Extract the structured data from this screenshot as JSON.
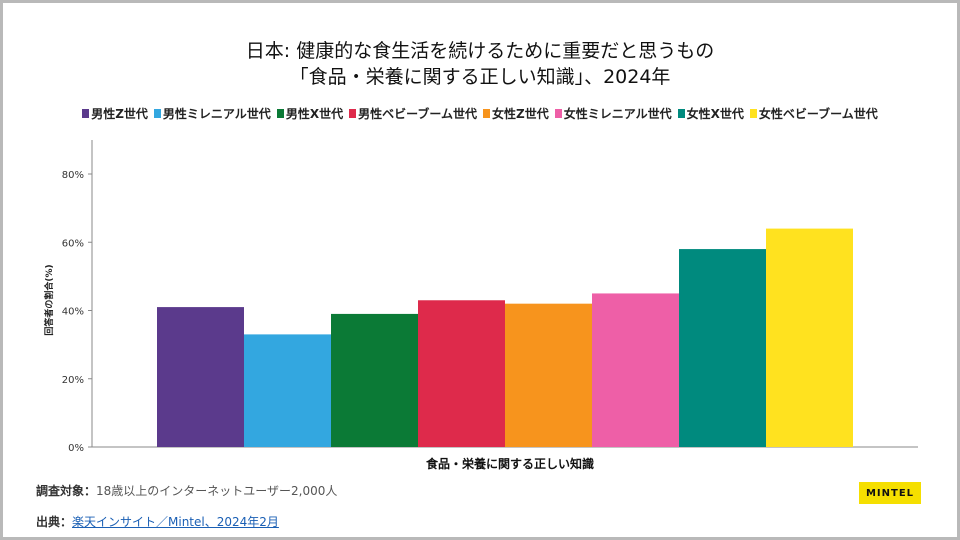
{
  "title_line1": "日本: 健康的な食生活を続けるために重要だと思うもの",
  "title_line2": "「食品・栄養に関する正しい知識」、2024年",
  "footer": {
    "sample_label": "調査対象：",
    "sample_text": "18歳以上のインターネットユーザー2,000人",
    "source_label": "出典：",
    "source_link": "楽天インサイト／Mintel、2024年2月"
  },
  "brand": "MINTEL",
  "chart_data": {
    "type": "bar",
    "categories": [
      "食品・栄養に関する正しい知識"
    ],
    "xlabel": "食品・栄養に関する正しい知識",
    "ylabel": "回答者の割合(%)",
    "ylim": [
      0,
      80
    ],
    "yticks": [
      0,
      20,
      40,
      60,
      80
    ],
    "ytick_labels": [
      "0%",
      "20%",
      "40%",
      "60%",
      "80%"
    ],
    "grid": false,
    "legend_position": "top",
    "series": [
      {
        "name": "男性Z世代",
        "values": [
          41
        ],
        "color": "#5b3a8c"
      },
      {
        "name": "男性ミレニアル世代",
        "values": [
          33
        ],
        "color": "#33a7e0"
      },
      {
        "name": "男性X世代",
        "values": [
          39
        ],
        "color": "#0b7a36"
      },
      {
        "name": "男性ベビーブーム世代",
        "values": [
          43
        ],
        "color": "#de2a4b"
      },
      {
        "name": "女性Z世代",
        "values": [
          42
        ],
        "color": "#f7941d"
      },
      {
        "name": "女性ミレニアル世代",
        "values": [
          45
        ],
        "color": "#ee5fa7"
      },
      {
        "name": "女性X世代",
        "values": [
          58
        ],
        "color": "#008a7e"
      },
      {
        "name": "女性ベビーブーム世代",
        "values": [
          64
        ],
        "color": "#ffe21f"
      }
    ]
  }
}
